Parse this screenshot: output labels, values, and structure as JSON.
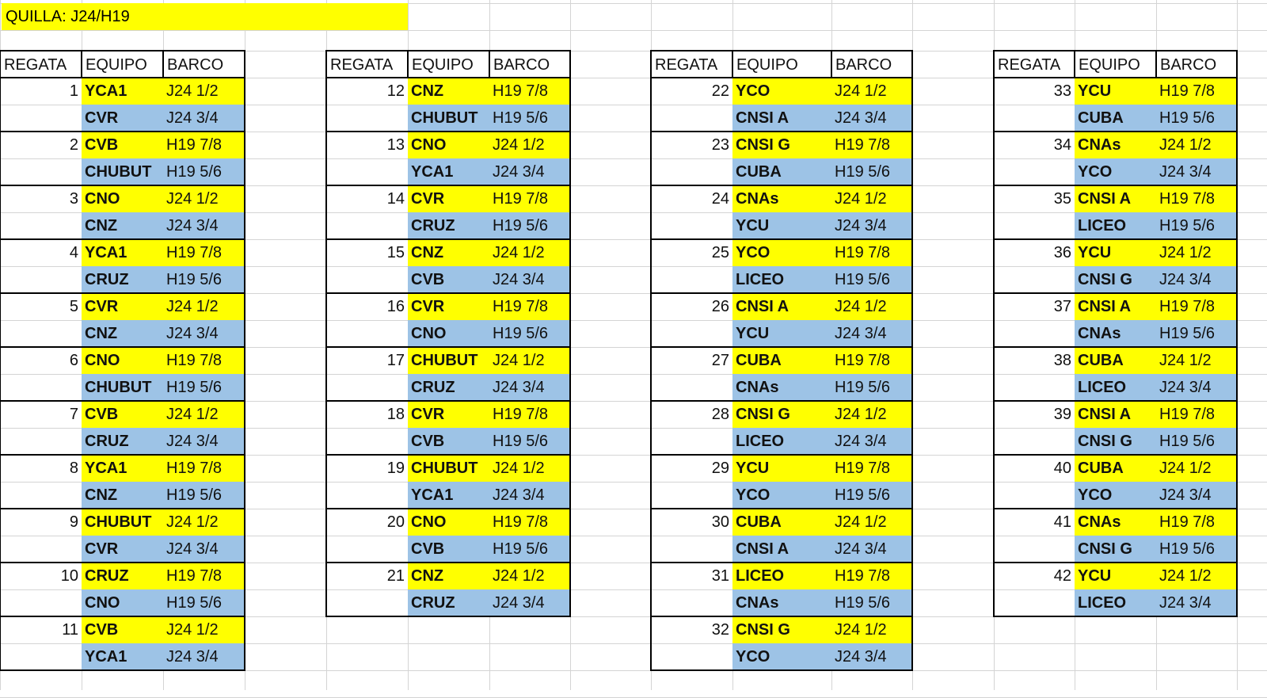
{
  "title": "QUILLA: J24/H19",
  "headers": {
    "regata": "REGATA",
    "equipo": "EQUIPO",
    "barco": "BARCO"
  },
  "colors": {
    "first_boat": "#ffff00",
    "second_boat": "#9dc3e6",
    "border": "#000000"
  },
  "tables": [
    {
      "races": [
        {
          "n": "1",
          "a": "YCA1",
          "ab": "J24 1/2",
          "b": "CVR",
          "bb": "J24 3/4"
        },
        {
          "n": "2",
          "a": "CVB",
          "ab": "H19 7/8",
          "b": "CHUBUT",
          "bb": "H19 5/6"
        },
        {
          "n": "3",
          "a": "CNO",
          "ab": "J24 1/2",
          "b": "CNZ",
          "bb": "J24 3/4"
        },
        {
          "n": "4",
          "a": "YCA1",
          "ab": "H19 7/8",
          "b": "CRUZ",
          "bb": "H19 5/6"
        },
        {
          "n": "5",
          "a": "CVR",
          "ab": "J24 1/2",
          "b": "CNZ",
          "bb": "J24 3/4"
        },
        {
          "n": "6",
          "a": "CNO",
          "ab": "H19 7/8",
          "b": "CHUBUT",
          "bb": "H19 5/6"
        },
        {
          "n": "7",
          "a": "CVB",
          "ab": "J24 1/2",
          "b": "CRUZ",
          "bb": "J24 3/4"
        },
        {
          "n": "8",
          "a": "YCA1",
          "ab": "H19 7/8",
          "b": "CNZ",
          "bb": "H19 5/6"
        },
        {
          "n": "9",
          "a": "CHUBUT",
          "ab": "J24 1/2",
          "b": "CVR",
          "bb": "J24 3/4"
        },
        {
          "n": "10",
          "a": "CRUZ",
          "ab": "H19 7/8",
          "b": "CNO",
          "bb": "H19 5/6"
        },
        {
          "n": "11",
          "a": "CVB",
          "ab": "J24 1/2",
          "b": "YCA1",
          "bb": "J24 3/4"
        }
      ]
    },
    {
      "races": [
        {
          "n": "12",
          "a": "CNZ",
          "ab": "H19 7/8",
          "b": "CHUBUT",
          "bb": "H19 5/6"
        },
        {
          "n": "13",
          "a": "CNO",
          "ab": "J24 1/2",
          "b": "YCA1",
          "bb": "J24 3/4"
        },
        {
          "n": "14",
          "a": "CVR",
          "ab": "H19 7/8",
          "b": "CRUZ",
          "bb": "H19 5/6"
        },
        {
          "n": "15",
          "a": "CNZ",
          "ab": "J24 1/2",
          "b": "CVB",
          "bb": "J24 3/4"
        },
        {
          "n": "16",
          "a": "CVR",
          "ab": "H19 7/8",
          "b": "CNO",
          "bb": "H19 5/6"
        },
        {
          "n": "17",
          "a": "CHUBUT",
          "ab": "J24 1/2",
          "b": "CRUZ",
          "bb": "J24 3/4"
        },
        {
          "n": "18",
          "a": "CVR",
          "ab": "H19 7/8",
          "b": "CVB",
          "bb": "H19 5/6"
        },
        {
          "n": "19",
          "a": "CHUBUT",
          "ab": "J24 1/2",
          "b": "YCA1",
          "bb": "J24 3/4"
        },
        {
          "n": "20",
          "a": "CNO",
          "ab": "H19 7/8",
          "b": "CVB",
          "bb": "H19 5/6"
        },
        {
          "n": "21",
          "a": "CNZ",
          "ab": "J24 1/2",
          "b": "CRUZ",
          "bb": "J24 3/4"
        }
      ]
    },
    {
      "races": [
        {
          "n": "22",
          "a": "YCO",
          "ab": "J24 1/2",
          "b": "CNSI A",
          "bb": "J24 3/4"
        },
        {
          "n": "23",
          "a": "CNSI G",
          "ab": "H19 7/8",
          "b": "CUBA",
          "bb": "H19 5/6"
        },
        {
          "n": "24",
          "a": "CNAs",
          "ab": "J24 1/2",
          "b": "YCU",
          "bb": "J24 3/4"
        },
        {
          "n": "25",
          "a": "YCO",
          "ab": "H19 7/8",
          "b": "LICEO",
          "bb": "H19 5/6"
        },
        {
          "n": "26",
          "a": "CNSI A",
          "ab": "J24 1/2",
          "b": "YCU",
          "bb": "J24 3/4"
        },
        {
          "n": "27",
          "a": "CUBA",
          "ab": "H19 7/8",
          "b": "CNAs",
          "bb": "H19 5/6"
        },
        {
          "n": "28",
          "a": "CNSI G",
          "ab": "J24 1/2",
          "b": "LICEO",
          "bb": "J24 3/4"
        },
        {
          "n": "29",
          "a": "YCU",
          "ab": "H19 7/8",
          "b": "YCO",
          "bb": "H19 5/6"
        },
        {
          "n": "30",
          "a": "CUBA",
          "ab": "J24 1/2",
          "b": "CNSI A",
          "bb": "J24 3/4"
        },
        {
          "n": "31",
          "a": "LICEO",
          "ab": "H19 7/8",
          "b": "CNAs",
          "bb": "H19 5/6"
        },
        {
          "n": "32",
          "a": "CNSI G",
          "ab": "J24 1/2",
          "b": "YCO",
          "bb": "J24 3/4"
        }
      ]
    },
    {
      "races": [
        {
          "n": "33",
          "a": "YCU",
          "ab": "H19 7/8",
          "b": "CUBA",
          "bb": "H19 5/6"
        },
        {
          "n": "34",
          "a": "CNAs",
          "ab": "J24 1/2",
          "b": "YCO",
          "bb": "J24 3/4"
        },
        {
          "n": "35",
          "a": "CNSI A",
          "ab": "H19 7/8",
          "b": "LICEO",
          "bb": "H19 5/6"
        },
        {
          "n": "36",
          "a": "YCU",
          "ab": "J24 1/2",
          "b": "CNSI G",
          "bb": "J24 3/4"
        },
        {
          "n": "37",
          "a": "CNSI A",
          "ab": "H19 7/8",
          "b": "CNAs",
          "bb": "H19 5/6"
        },
        {
          "n": "38",
          "a": "CUBA",
          "ab": "J24 1/2",
          "b": "LICEO",
          "bb": "J24 3/4"
        },
        {
          "n": "39",
          "a": "CNSI A",
          "ab": "H19 7/8",
          "b": "CNSI G",
          "bb": "H19 5/6"
        },
        {
          "n": "40",
          "a": "CUBA",
          "ab": "J24 1/2",
          "b": "YCO",
          "bb": "J24 3/4"
        },
        {
          "n": "41",
          "a": "CNAs",
          "ab": "H19 7/8",
          "b": "CNSI G",
          "bb": "H19 5/6"
        },
        {
          "n": "42",
          "a": "YCU",
          "ab": "J24 1/2",
          "b": "LICEO",
          "bb": "J24 3/4"
        }
      ]
    }
  ]
}
